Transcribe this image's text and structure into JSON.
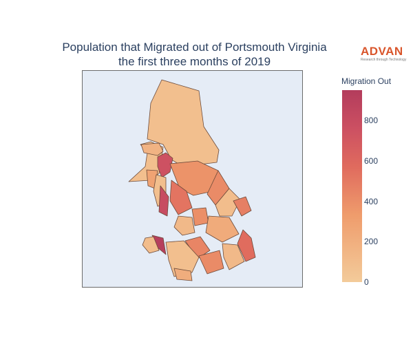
{
  "title": {
    "line1": "Population that Migrated out of Portsmouth Virginia",
    "line2": "the first three months of 2019"
  },
  "logo": {
    "word": "ADVAN",
    "tagline": "Research through Technology"
  },
  "colorbar": {
    "title": "Migration Out",
    "range": [
      0,
      950
    ],
    "ticks": [
      {
        "value": 0,
        "label": "0"
      },
      {
        "value": 200,
        "label": "200"
      },
      {
        "value": 400,
        "label": "400"
      },
      {
        "value": 600,
        "label": "600"
      },
      {
        "value": 800,
        "label": "800"
      }
    ],
    "colors": [
      "#f3cb9a",
      "#ef9c6c",
      "#e06b5e",
      "#cc5062",
      "#b33c5c"
    ]
  },
  "chart_data": {
    "type": "choropleth",
    "region": "Portsmouth, Virginia",
    "value_label": "Migration Out",
    "color_range": [
      0,
      950
    ],
    "regions": [
      {
        "name": "north",
        "value": 60
      },
      {
        "name": "nw-inlet",
        "value": 60
      },
      {
        "name": "nw-a",
        "value": 120
      },
      {
        "name": "nw-b",
        "value": 700
      },
      {
        "name": "nw-c",
        "value": 200
      },
      {
        "name": "west-a",
        "value": 280
      },
      {
        "name": "west-b",
        "value": 60
      },
      {
        "name": "mid-east",
        "value": 320
      },
      {
        "name": "mid-west",
        "value": 430
      },
      {
        "name": "river-strip",
        "value": 760
      },
      {
        "name": "east-a",
        "value": 70
      },
      {
        "name": "east-b",
        "value": 380
      },
      {
        "name": "east-c",
        "value": 470
      },
      {
        "name": "center-a",
        "value": 300
      },
      {
        "name": "center-b",
        "value": 90
      },
      {
        "name": "center-c",
        "value": 160
      },
      {
        "name": "center-d",
        "value": 350
      },
      {
        "name": "sw-a",
        "value": 920
      },
      {
        "name": "sw-b",
        "value": 70
      },
      {
        "name": "south-a",
        "value": 320
      },
      {
        "name": "south-b",
        "value": 60
      },
      {
        "name": "south-c",
        "value": 90
      },
      {
        "name": "se-a",
        "value": 150
      }
    ]
  }
}
